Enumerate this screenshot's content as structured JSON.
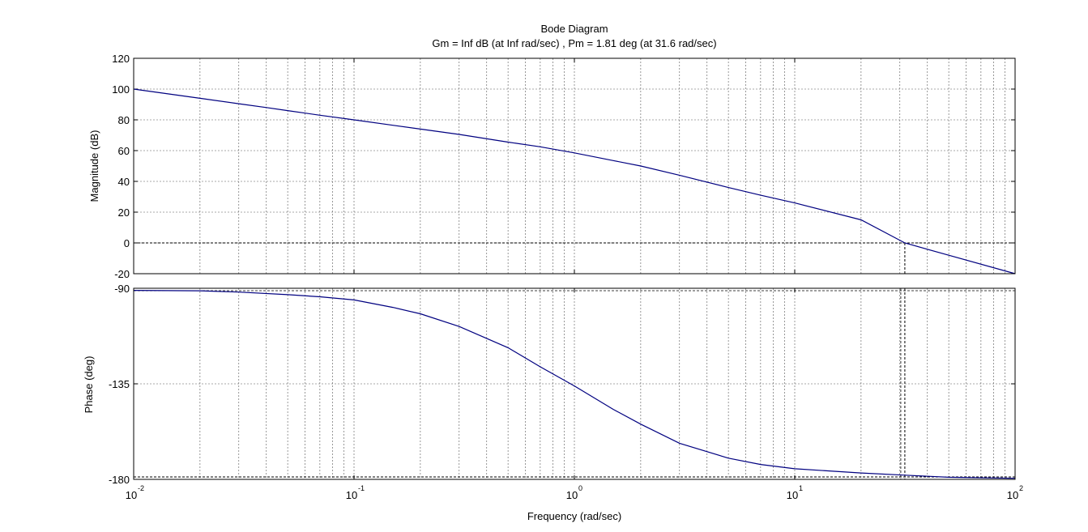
{
  "chart_data": {
    "type": "line",
    "title": "Bode Diagram",
    "subtitle": "Gm = Inf dB (at Inf rad/sec) ,  Pm = 1.81 deg (at 31.6 rad/sec)",
    "xlabel": "Frequency  (rad/sec)",
    "xscale": "log",
    "xlim": [
      0.01,
      100
    ],
    "x_ticks": [
      {
        "base": "10",
        "exp": "-2"
      },
      {
        "base": "10",
        "exp": "-1"
      },
      {
        "base": "10",
        "exp": "0"
      },
      {
        "base": "10",
        "exp": "1"
      },
      {
        "base": "10",
        "exp": "2"
      }
    ],
    "grid": true,
    "line_color": "#000080",
    "crossover_frequency": 31.6,
    "panels": [
      {
        "id": "magnitude",
        "ylabel": "Magnitude (dB)",
        "ylim": [
          -20,
          120
        ],
        "y_ticks": [
          "120",
          "100",
          "80",
          "60",
          "40",
          "20",
          "0",
          "-20"
        ],
        "reference_line": 0,
        "series": [
          {
            "x": [
              0.01,
              0.02,
              0.03,
              0.04,
              0.05,
              0.07,
              0.1,
              0.15,
              0.2,
              0.3,
              0.5,
              0.7,
              1,
              1.5,
              2,
              3,
              5,
              7,
              10,
              20,
              31.6,
              50,
              100
            ],
            "values": [
              100,
              94,
              90.5,
              88,
              86,
              83,
              80,
              76.5,
              74,
              70.5,
              65.5,
              62.5,
              58.5,
              53.5,
              50,
              44,
              36,
              31,
              26,
              15,
              0,
              -8,
              -20
            ]
          }
        ]
      },
      {
        "id": "phase",
        "ylabel": "Phase (deg)",
        "ylim": [
          -180,
          -90
        ],
        "y_ticks": [
          "-90",
          "-135",
          "-180"
        ],
        "reference_line": -180,
        "series": [
          {
            "x": [
              0.01,
              0.02,
              0.03,
              0.05,
              0.07,
              0.1,
              0.15,
              0.2,
              0.3,
              0.5,
              0.7,
              1,
              1.5,
              2,
              3,
              5,
              7,
              10,
              20,
              31.6,
              50,
              100
            ],
            "values": [
              -91,
              -91.2,
              -91.8,
              -93,
              -94,
              -95.5,
              -99,
              -102,
              -108,
              -118,
              -127,
              -136,
              -147,
              -154,
              -163,
              -170,
              -173,
              -175,
              -177,
              -178,
              -179,
              -179.5
            ]
          }
        ]
      }
    ]
  }
}
